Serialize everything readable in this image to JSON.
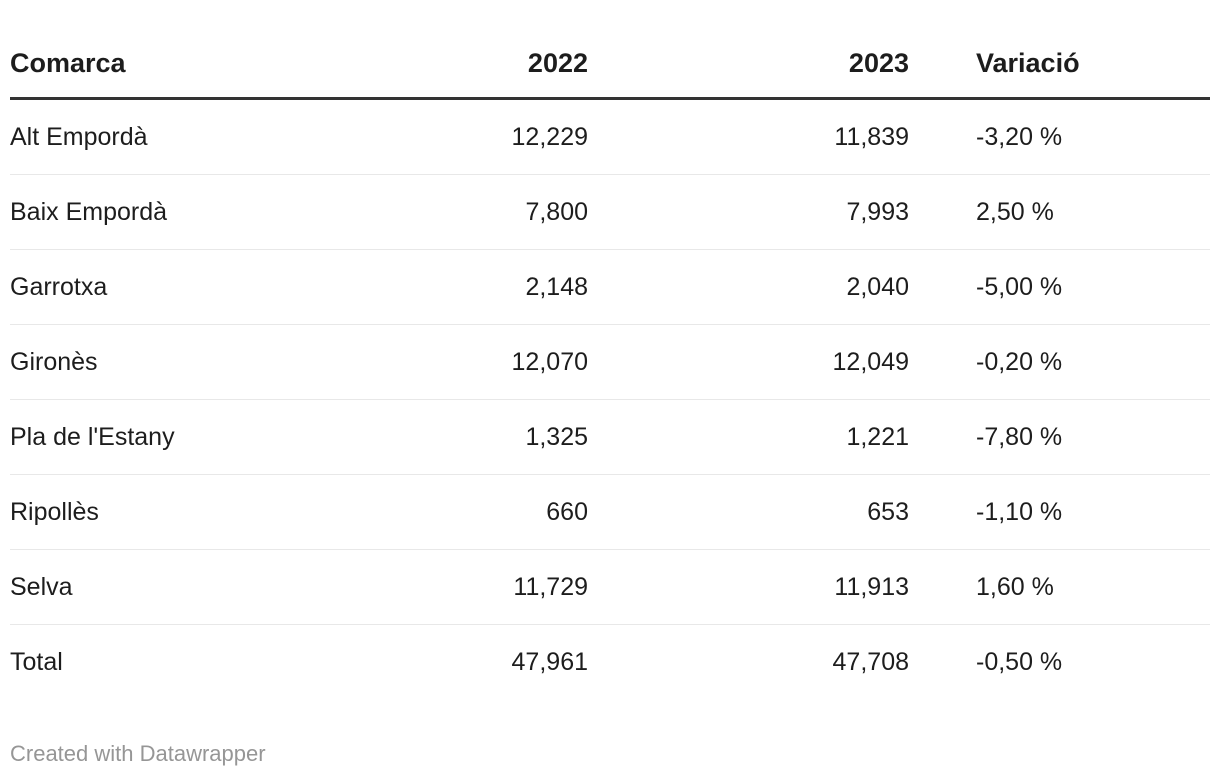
{
  "colors": {
    "background": "#ffffff",
    "text": "#1d1d1d",
    "header_rule": "#333333",
    "row_divider": "#e8e8e8",
    "footer_text": "#969696"
  },
  "chart_data": {
    "type": "table",
    "columns": [
      "Comarca",
      "2022",
      "2023",
      "Variació"
    ],
    "rows": [
      [
        "Alt Empordà",
        "12,229",
        "11,839",
        "-3,20 %"
      ],
      [
        "Baix Empordà",
        "7,800",
        "7,993",
        "2,50 %"
      ],
      [
        "Garrotxa",
        "2,148",
        "2,040",
        "-5,00 %"
      ],
      [
        "Gironès",
        "12,070",
        "12,049",
        "-0,20 %"
      ],
      [
        "Pla de l'Estany",
        "1,325",
        "1,221",
        "-7,80 %"
      ],
      [
        "Ripollès",
        "660",
        "653",
        "-1,10 %"
      ],
      [
        "Selva",
        "11,729",
        "11,913",
        "1,60 %"
      ],
      [
        "Total",
        "47,961",
        "47,708",
        "-0,50 %"
      ]
    ]
  },
  "footer": {
    "credit": "Created with Datawrapper"
  }
}
